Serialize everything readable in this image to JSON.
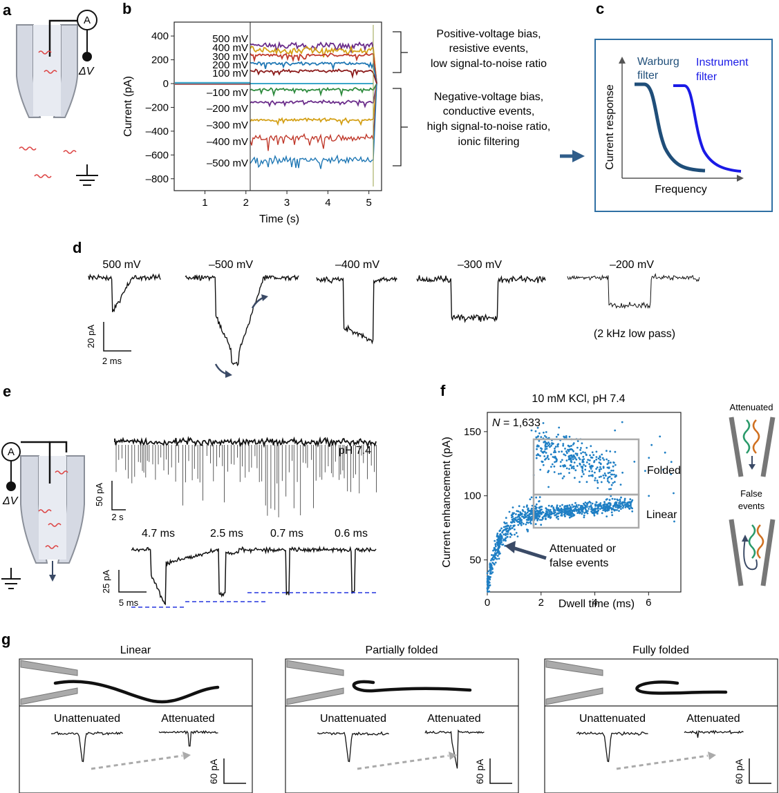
{
  "panel_labels": {
    "a": "a",
    "b": "b",
    "c": "c",
    "d": "d",
    "e": "e",
    "f": "f",
    "g": "g"
  },
  "panel_a": {
    "ammeter": "A",
    "voltage": "ΔV"
  },
  "panel_b": {
    "ylabel": "Current (pA)",
    "xlabel": "Time (s)",
    "yticks": [
      "400",
      "200",
      "0",
      "–200",
      "–400",
      "–600",
      "–800"
    ],
    "xticks": [
      "1",
      "2",
      "3",
      "4",
      "5"
    ],
    "pos_labels": [
      "500 mV",
      "400 mV",
      "300 mV",
      "200 mV",
      "100 mV"
    ],
    "neg_labels": [
      "–100 mV",
      "–200 mV",
      "–300 mV",
      "–400 mV",
      "–500 mV"
    ],
    "pos_annotation": [
      "Positive-voltage bias,",
      "resistive events,",
      "low signal-to-noise ratio"
    ],
    "neg_annotation": [
      "Negative-voltage bias,",
      "conductive events,",
      "high signal-to-noise ratio,",
      "ionic filtering"
    ],
    "colors": {
      "500": "#6a2c8a",
      "400": "#d4a017",
      "300": "#c0392b",
      "200": "#1f77b4",
      "100": "#8b1a1a",
      "0": "#3aa6c9",
      "-100": "#2e8b3e",
      "-200": "#6a2c8a",
      "-300": "#d4a017",
      "-400": "#c0392b",
      "-500": "#1f77b4"
    }
  },
  "panel_c": {
    "ylabel": "Current response",
    "xlabel": "Frequency",
    "warburg": [
      "Warburg",
      "filter"
    ],
    "instrument": [
      "Instrument",
      "filter"
    ],
    "warburg_color": "#1f4e79",
    "instrument_color": "#1a1ae6"
  },
  "panel_d": {
    "labels": [
      "500 mV",
      "–500 mV",
      "–400 mV",
      "–300 mV",
      "–200 mV"
    ],
    "scale_y": "20 pA",
    "scale_x": "2 ms",
    "lowpass": "(2 kHz low pass)"
  },
  "panel_e": {
    "ammeter": "A",
    "voltage": "ΔV",
    "ph": "pH 7.4",
    "scale1_y": "50 pA",
    "scale1_x": "2 s",
    "dwell_labels": [
      "4.7 ms",
      "2.5 ms",
      "0.7 ms",
      "0.6 ms"
    ],
    "scale2_y": "25 pA",
    "scale2_x": "5 ms"
  },
  "panel_f": {
    "title": "10 mM KCl, pH 7.4",
    "n_label": "N",
    "n_value": " = 1,633",
    "ylabel": "Current enhancement (pA)",
    "xlabel": "Dwell time (ms)",
    "yticks": [
      "150",
      "100",
      "50"
    ],
    "xticks": [
      "0",
      "2",
      "4",
      "6"
    ],
    "folded": "Folded",
    "linear": "Linear",
    "attenuated_note": [
      "Attenuated or",
      "false events"
    ],
    "side_top": "Attenuated",
    "side_bottom": [
      "False",
      "events"
    ],
    "point_color": "#1f7fc4"
  },
  "chart_data": {
    "type": "scatter",
    "title": "10 mM KCl, pH 7.4",
    "xlabel": "Dwell time (ms)",
    "ylabel": "Current enhancement (pA)",
    "xlim": [
      0,
      7.2
    ],
    "ylim": [
      25,
      165
    ],
    "n": 1633,
    "clusters": [
      {
        "label": "Folded",
        "x_range": [
          1.7,
          5.3
        ],
        "y_range": [
          105,
          160
        ]
      },
      {
        "label": "Linear",
        "x_range": [
          1.7,
          5.3
        ],
        "y_range": [
          80,
          105
        ]
      },
      {
        "label": "Attenuated or false events",
        "x_range": [
          0,
          1.7
        ],
        "y_range": [
          25,
          90
        ]
      }
    ]
  },
  "panel_g": {
    "titles": [
      "Linear",
      "Partially folded",
      "Fully folded"
    ],
    "unattenuated": "Unattenuated",
    "attenuated": "Attenuated",
    "scale": "60 pA"
  }
}
